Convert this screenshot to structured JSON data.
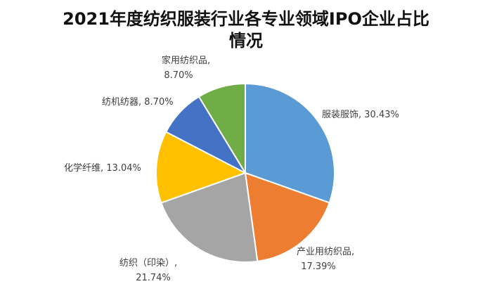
{
  "chart_data": {
    "type": "pie",
    "title": "2021年度纺织服装行业各专业领域IPO企业占比",
    "title_line2": "情况",
    "slices": [
      {
        "name": "服装服饰",
        "value": 30.43,
        "label": "服装服饰, 30.43%",
        "color": "#5b9bd5"
      },
      {
        "name": "产业用纺织品",
        "value": 17.39,
        "label_line1": "产业用纺织品,",
        "label_line2": "17.39%",
        "color": "#ed7d31"
      },
      {
        "name": "纺织（印染）",
        "value": 21.74,
        "label_line1": "纺织（印染）,",
        "label_line2": "21.74%",
        "color": "#a5a5a5"
      },
      {
        "name": "化学纤维",
        "value": 13.04,
        "label": "化学纤维, 13.04%",
        "color": "#ffc000"
      },
      {
        "name": "纺机纺器",
        "value": 8.7,
        "label": "纺机纺器, 8.70%",
        "color": "#4472c4"
      },
      {
        "name": "家用纺织品",
        "value": 8.7,
        "label_line1": "家用纺织品,",
        "label_line2": "8.70%",
        "color": "#70ad47"
      }
    ],
    "legend": "none"
  }
}
